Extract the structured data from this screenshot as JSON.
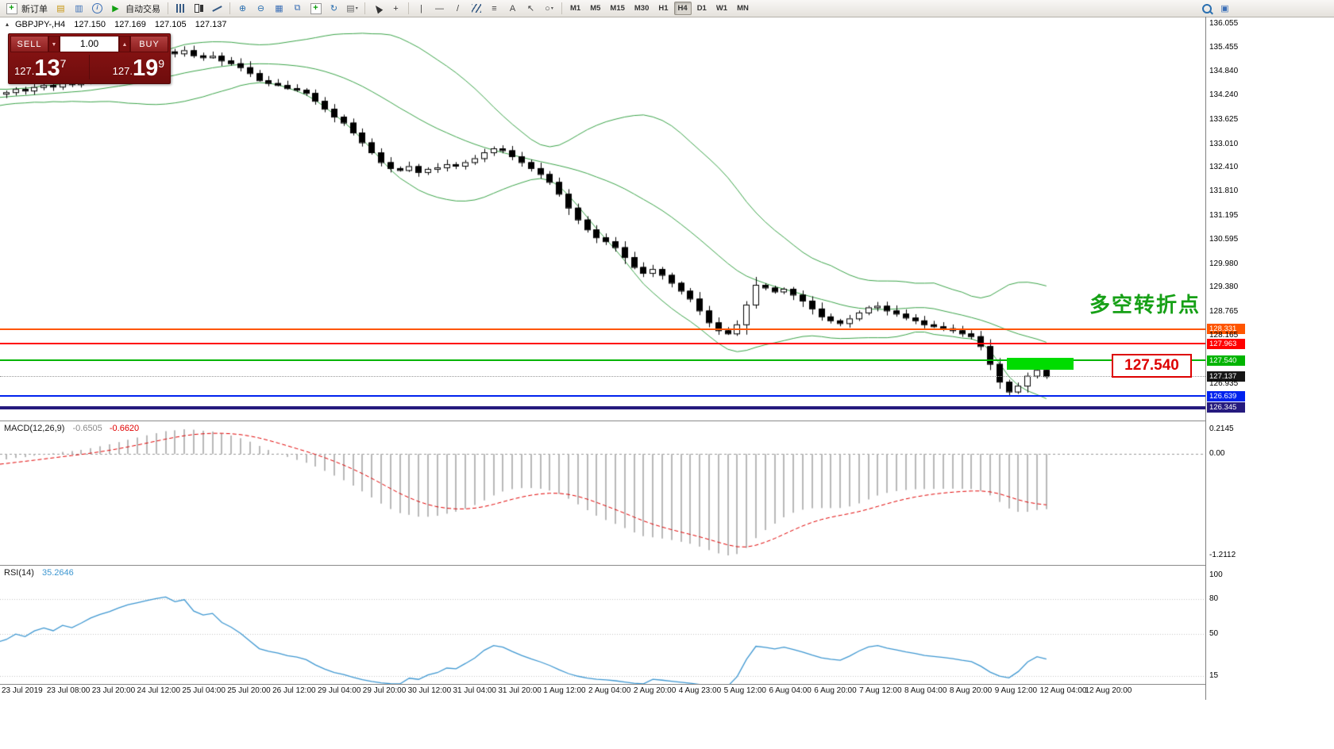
{
  "toolbar": {
    "items": [
      {
        "name": "new-order-icon",
        "glyph": "+",
        "color": "#0c9c0c",
        "box": true,
        "label": "新订单"
      },
      {
        "name": "market-watch-icon",
        "glyph": "▤",
        "color": "#c6940e"
      },
      {
        "name": "data-window-icon",
        "glyph": "▥",
        "color": "#3b6fb6"
      },
      {
        "name": "navigator-icon",
        "glyph": "i",
        "circle": true,
        "color": "#3b6fb6"
      },
      {
        "name": "auto-trading-icon",
        "glyph": "▶",
        "color": "#12a012",
        "label": "自动交易"
      },
      {
        "sep": true
      },
      {
        "name": "bar-chart-icon",
        "css": "ic-bars"
      },
      {
        "name": "candlestick-chart-icon",
        "css": "ic-candle"
      },
      {
        "name": "line-chart-icon",
        "css": "ic-line"
      },
      {
        "sep": true
      },
      {
        "name": "zoom-in-icon",
        "glyph": "⊕",
        "color": "#2a6fb0"
      },
      {
        "name": "zoom-out-icon",
        "glyph": "⊖",
        "color": "#2a6fb0"
      },
      {
        "name": "tile-windows-icon",
        "glyph": "▦",
        "color": "#3b6fb6"
      },
      {
        "name": "cascade-windows-icon",
        "glyph": "⧉",
        "color": "#3b6fb6"
      },
      {
        "name": "new-chart-icon",
        "glyph": "+",
        "color": "#0c9c0c",
        "box": true
      },
      {
        "name": "refresh-icon",
        "glyph": "↻",
        "color": "#2a6fb0"
      },
      {
        "name": "templates-icon",
        "glyph": "▤",
        "color": "#666",
        "caret": true
      },
      {
        "sep": true
      },
      {
        "name": "cursor-icon",
        "css": "ic-cursor"
      },
      {
        "name": "crosshair-icon",
        "glyph": "+",
        "color": "#333"
      },
      {
        "sep": true
      },
      {
        "name": "vertical-line-icon",
        "glyph": "|",
        "color": "#444"
      },
      {
        "name": "horizontal-line-icon",
        "glyph": "—",
        "color": "#444"
      },
      {
        "name": "trendline-icon",
        "glyph": "/",
        "color": "#444"
      },
      {
        "name": "channel-icon",
        "css": "ic-channel"
      },
      {
        "name": "fibonacci-icon",
        "glyph": "≡",
        "color": "#444"
      },
      {
        "name": "text-icon",
        "glyph": "A",
        "color": "#444"
      },
      {
        "name": "arrows-icon",
        "glyph": "↖",
        "color": "#444"
      },
      {
        "name": "shapes-icon",
        "glyph": "○",
        "color": "#444",
        "caret": true
      },
      {
        "sep": true
      }
    ],
    "timeframes": {
      "items": [
        "M1",
        "M5",
        "M15",
        "M30",
        "H1",
        "H4",
        "D1",
        "W1",
        "MN"
      ],
      "active": "H4"
    },
    "right_icons": [
      {
        "name": "search-icon",
        "css": "ic-mag"
      },
      {
        "name": "chart-window-icon",
        "glyph": "▣",
        "color": "#3b6fb6"
      }
    ]
  },
  "chart": {
    "symbol_line": "GBPJPY-,H4",
    "ohlc": {
      "open": "127.150",
      "high": "127.169",
      "low": "127.105",
      "close": "127.137"
    },
    "trade_panel": {
      "sell_label": "SELL",
      "buy_label": "BUY",
      "lot_size": "1.00",
      "sell_price": {
        "prefix": "127.",
        "big": "13",
        "sup": "7"
      },
      "buy_price": {
        "prefix": "127.",
        "big": "19",
        "sup": "9"
      }
    },
    "annotations": {
      "turning_point": "多空转折点",
      "price_box": "127.540"
    },
    "scale_labels": [
      "136.055",
      "135.455",
      "134.840",
      "134.240",
      "133.625",
      "133.010",
      "132.410",
      "131.810",
      "131.195",
      "130.595",
      "129.980",
      "129.380",
      "128.765",
      "128.165",
      "126.935"
    ],
    "hlines": [
      {
        "name": "resistance-line-upper",
        "price": 128.331,
        "label": "128.331",
        "color": "#ff5500",
        "thickness": 2
      },
      {
        "name": "resistance-line-lower",
        "price": 127.963,
        "label": "127.963",
        "color": "#ff0000",
        "thickness": 2
      },
      {
        "name": "pivot-line",
        "price": 127.54,
        "label": "127.540",
        "color": "#00b400",
        "thickness": 2
      },
      {
        "name": "support-line-upper",
        "price": 126.639,
        "label": "126.639",
        "color": "#0022ee",
        "thickness": 2
      },
      {
        "name": "support-line-lower",
        "price": 126.345,
        "label": "126.345",
        "color": "#251a7e",
        "thickness": 4
      }
    ],
    "bid_line": {
      "price": 127.137,
      "label": "127.137",
      "color": "#161616"
    },
    "candles": {
      "pre_count": 35,
      "closes": [
        135.1,
        135.05,
        134.95,
        134.85,
        134.9,
        134.8,
        134.7,
        134.75,
        134.6,
        134.5,
        134.4,
        134.3,
        134.2,
        134.1,
        134.05,
        133.95,
        134.0,
        134.1,
        134.05,
        134.15,
        134.1,
        134.2,
        134.15,
        134.25,
        134.2,
        134.1,
        134.15,
        134.25,
        134.3,
        134.25,
        134.35,
        134.3,
        134.25,
        134.3,
        134.28,
        134.32,
        134.4,
        134.36,
        134.45,
        134.5,
        134.46,
        134.55,
        134.52,
        134.6,
        134.7,
        134.78,
        134.85,
        134.95,
        135.05,
        135.12,
        135.2,
        135.28,
        135.35,
        135.3,
        135.38,
        135.25,
        135.2,
        135.24,
        135.12,
        135.05,
        134.95,
        134.8,
        134.62,
        134.55,
        134.5,
        134.42,
        134.38,
        134.3,
        134.1,
        133.9,
        133.7,
        133.55,
        133.3,
        133.05,
        132.8,
        132.55,
        132.4,
        132.35,
        132.45,
        132.3,
        132.38,
        132.42,
        132.5,
        132.46,
        132.55,
        132.65,
        132.8,
        132.9,
        132.85,
        132.7,
        132.55,
        132.4,
        132.25,
        132.05,
        131.75,
        131.4,
        131.1,
        130.85,
        130.65,
        130.55,
        130.4,
        130.15,
        129.9,
        129.75,
        129.85,
        129.7,
        129.5,
        129.3,
        129.1,
        128.8,
        128.5,
        128.3,
        128.22,
        128.45,
        128.95,
        129.45,
        129.38,
        129.28,
        129.35,
        129.2,
        129.05,
        128.85,
        128.65,
        128.55,
        128.48,
        128.6,
        128.75,
        128.88,
        128.92,
        128.8,
        128.72,
        128.62,
        128.55,
        128.45,
        128.4,
        128.35,
        128.3,
        128.22,
        128.15,
        127.9,
        127.45,
        127.0,
        126.75,
        126.9,
        127.15,
        127.3,
        127.14
      ]
    },
    "bollinger": {
      "period": 20,
      "deviation": 2,
      "color": "#3aa348"
    }
  },
  "macd": {
    "label": "MACD(12,26,9)",
    "value_main": "-0.6505",
    "value_signal": "-0.6620",
    "params": {
      "fast": 12,
      "slow": 26,
      "signal": 9
    },
    "scale": {
      "top": "0.2145",
      "zero": "0.00",
      "bottom": "-1.2112"
    },
    "histogram_color": "#b8b8b8",
    "signal_color": "#e00000"
  },
  "rsi": {
    "label": "RSI(14)",
    "value": "35.2646",
    "period": 14,
    "levels": [
      100,
      80,
      50,
      15
    ],
    "line_color": "#3e97d1"
  },
  "time_axis": [
    "23 Jul 2019",
    "23 Jul 08:00",
    "23 Jul 20:00",
    "24 Jul 12:00",
    "25 Jul 04:00",
    "25 Jul 20:00",
    "26 Jul 12:00",
    "29 Jul 04:00",
    "29 Jul 20:00",
    "30 Jul 12:00",
    "31 Jul 04:00",
    "31 Jul 20:00",
    "1 Aug 12:00",
    "2 Aug 04:00",
    "2 Aug 20:00",
    "4 Aug 23:00",
    "5 Aug 12:00",
    "6 Aug 04:00",
    "6 Aug 20:00",
    "7 Aug 12:00",
    "8 Aug 04:00",
    "8 Aug 20:00",
    "9 Aug 12:00",
    "12 Aug 04:00",
    "12 Aug 20:00"
  ]
}
